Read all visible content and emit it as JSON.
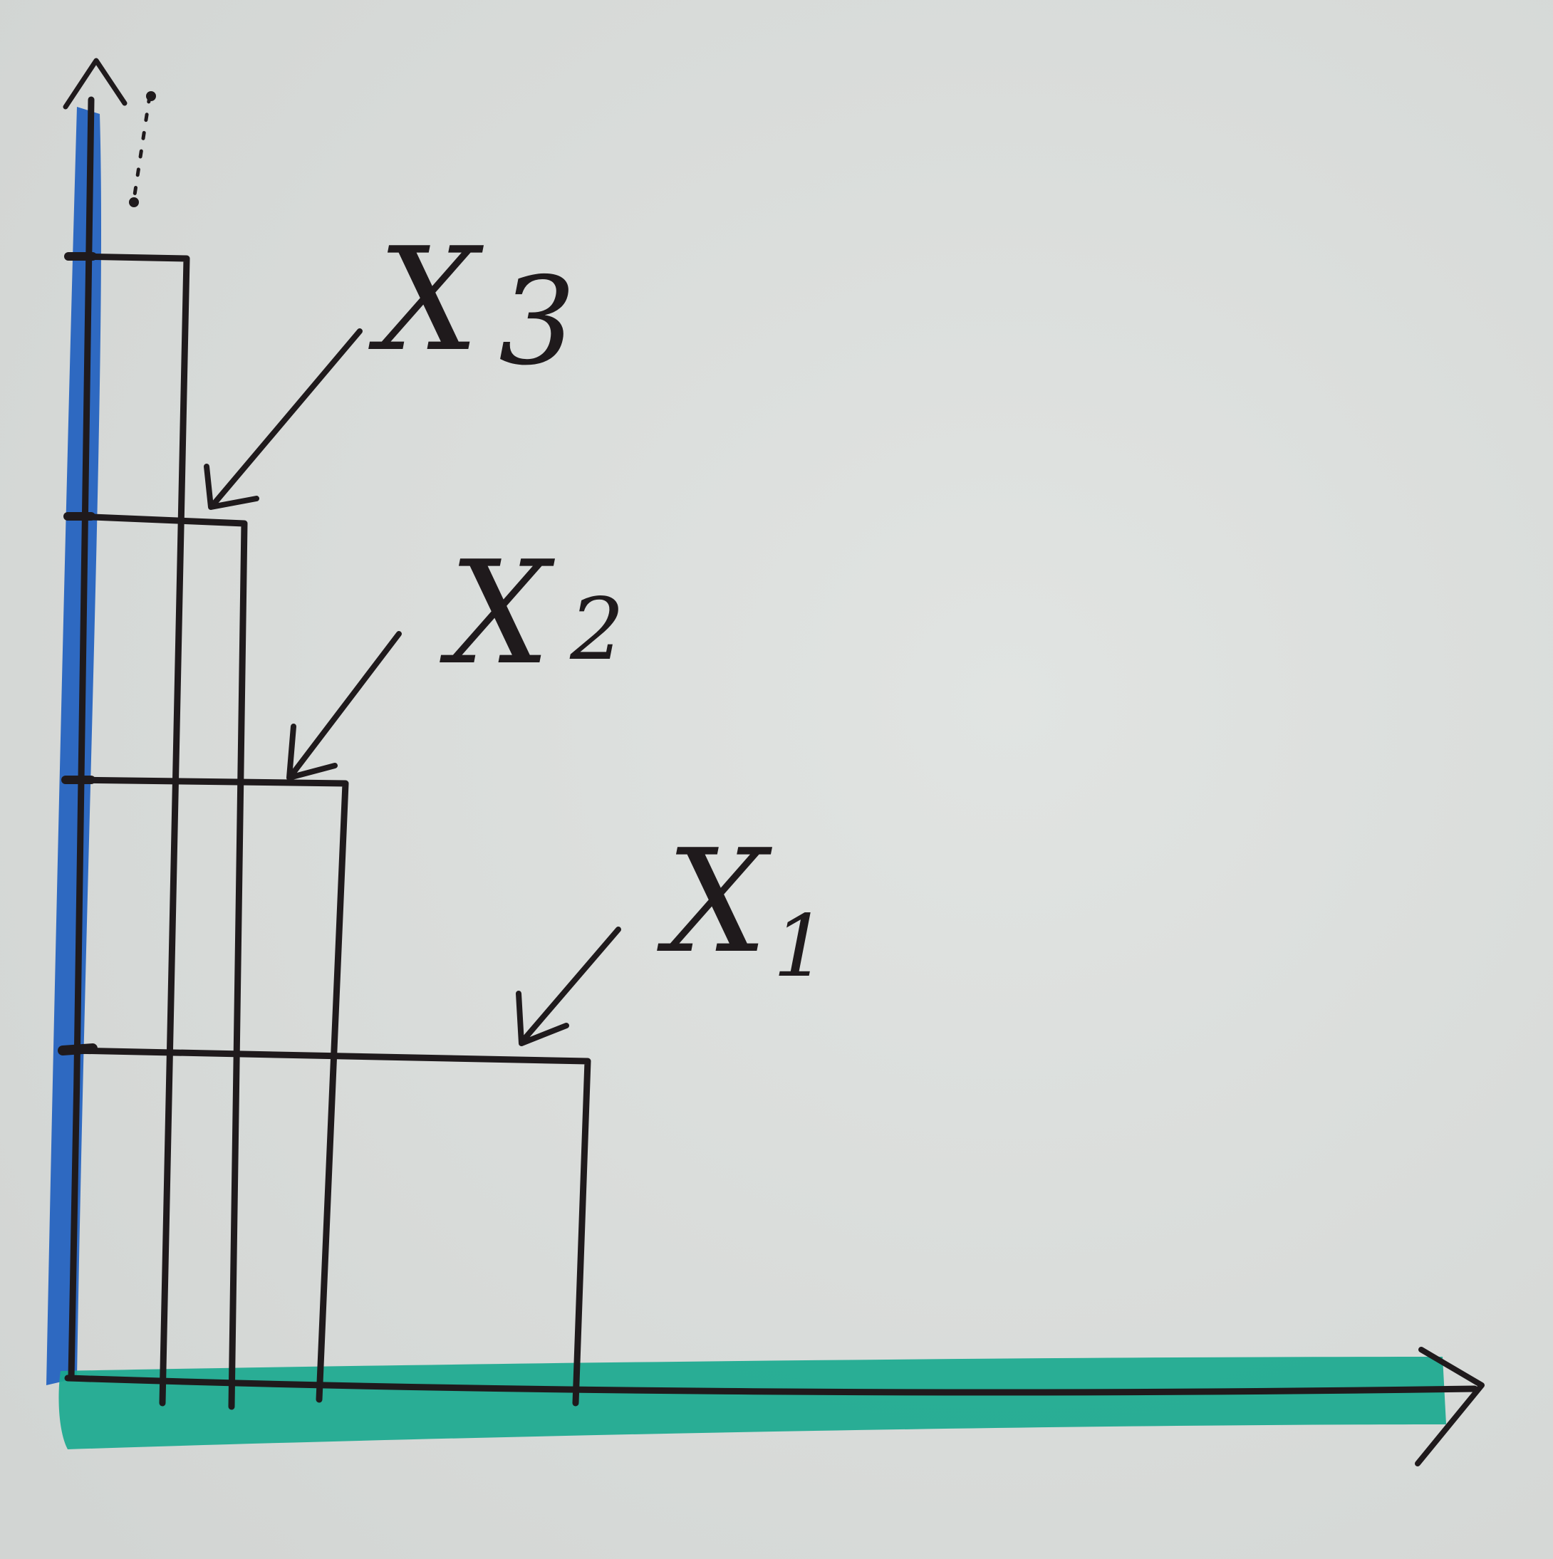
{
  "labels": {
    "x3": {
      "letter": "X",
      "subscript": "3"
    },
    "x2": {
      "letter": "X",
      "subscript": "2"
    },
    "x1": {
      "letter": "X",
      "subscript": "1"
    }
  },
  "colors": {
    "paper": "#d9dcda",
    "ink": "#1f1a1c",
    "y_axis_highlight": "#1f5fbf",
    "x_axis_highlight": "#1aa98f"
  }
}
